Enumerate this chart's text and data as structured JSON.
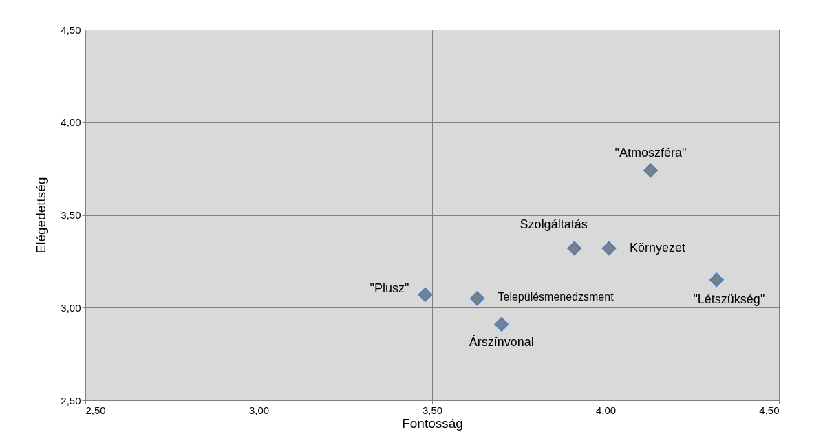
{
  "chart_data": {
    "type": "scatter",
    "xlabel": "Fontosság",
    "ylabel": "Elégedettség",
    "x": [
      3.48,
      3.63,
      3.7,
      3.91,
      4.01,
      4.13,
      4.32
    ],
    "values": [
      3.07,
      3.05,
      2.91,
      3.32,
      3.32,
      3.74,
      3.15
    ],
    "color": "#7f7f7f",
    "marker": "diamond",
    "grid": true,
    "xlim": [
      2.5,
      4.5
    ],
    "ylim": [
      2.5,
      4.5
    ],
    "xticks": [
      {
        "value": 2.5,
        "label": "2,50"
      },
      {
        "value": 3.0,
        "label": "3,00"
      },
      {
        "value": 3.5,
        "label": "3,50"
      },
      {
        "value": 4.0,
        "label": "4,00"
      },
      {
        "value": 4.5,
        "label": "4,50"
      }
    ],
    "yticks": [
      {
        "value": 2.5,
        "label": "2,50"
      },
      {
        "value": 3.0,
        "label": "3,00"
      },
      {
        "value": 3.5,
        "label": "3,50"
      },
      {
        "value": 4.0,
        "label": "4,00"
      },
      {
        "value": 4.5,
        "label": "4,50"
      }
    ],
    "annotations": [
      {
        "text": "\"Plusz\"",
        "x": 3.48,
        "y": 3.07
      },
      {
        "text": "Településmenedzsment",
        "x": 3.63,
        "y": 3.05
      },
      {
        "text": "Árszínvonal",
        "x": 3.7,
        "y": 2.91
      },
      {
        "text": "Szolgáltatás",
        "x": 3.91,
        "y": 3.32
      },
      {
        "text": "Környezet",
        "x": 4.01,
        "y": 3.32
      },
      {
        "text": "\"Atmoszféra\"",
        "x": 4.13,
        "y": 3.74
      },
      {
        "text": "\"Létszükség\"",
        "x": 4.32,
        "y": 3.15
      }
    ]
  }
}
